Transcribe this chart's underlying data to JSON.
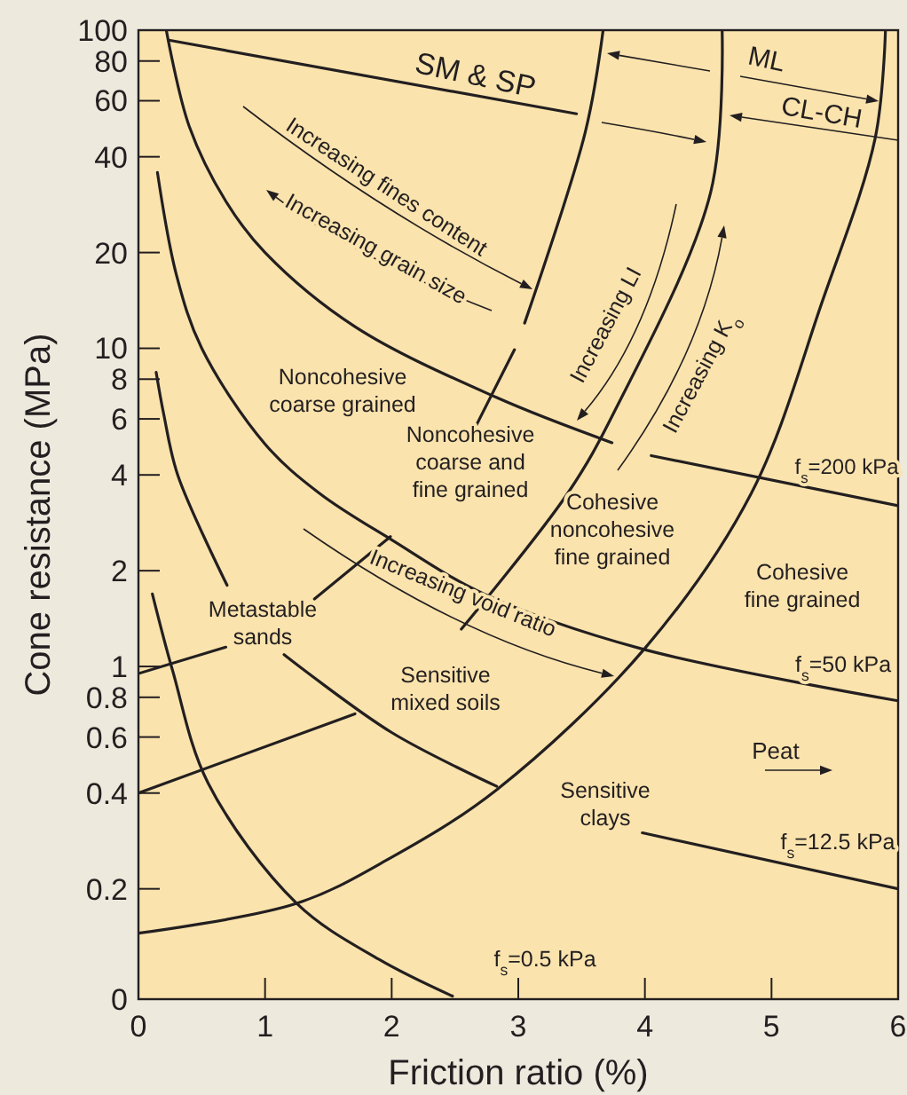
{
  "chart_data": {
    "type": "line",
    "xlabel": "Friction ratio (%)",
    "ylabel": "Cone resistance (MPa)",
    "log": "y",
    "xlim": [
      0,
      6
    ],
    "ylim": [
      0.09,
      100
    ],
    "xticks": [
      0,
      1,
      2,
      3,
      4,
      5,
      6
    ],
    "yticks": [
      {
        "value": 0.09,
        "label": "0"
      },
      0.2,
      0.4,
      0.6,
      0.8,
      1,
      2,
      4,
      6,
      8,
      10,
      20,
      40,
      60,
      80,
      100
    ],
    "series": [
      {
        "color": "#231f20",
        "x": [
          0.22,
          0.4,
          0.69,
          1.0,
          1.71,
          2.83,
          3.74,
          3.9,
          4.05,
          6.0
        ],
        "values": [
          100,
          50,
          29,
          20,
          11.7,
          7.0,
          5.05,
          null,
          4.6,
          3.2
        ]
      },
      {
        "color": "#231f20",
        "x": [
          0.15,
          0.3,
          0.5,
          1.0,
          1.43,
          2.0,
          2.73,
          3.96,
          6.0
        ],
        "values": [
          35.7,
          17,
          10,
          5,
          3.5,
          2.5,
          1.69,
          1.14,
          0.78
        ]
      },
      {
        "color": "#231f20",
        "x": [
          0.14,
          0.2,
          0.31,
          0.7,
          0.9,
          1.15,
          2.0,
          2.83,
          3.4,
          3.98,
          6.0
        ],
        "values": [
          8.4,
          6.2,
          4.0,
          1.8,
          null,
          1.09,
          0.62,
          0.42,
          null,
          0.3,
          0.2
        ]
      },
      {
        "color": "#231f20",
        "x": [
          0.11,
          0.27,
          0.55,
          1.25,
          1.9,
          2.48
        ],
        "values": [
          1.69,
          0.97,
          0.43,
          0.18,
          0.12,
          0.092
        ]
      },
      {
        "color": "#231f20",
        "x": [
          0,
          1.25,
          1.99,
          2.83,
          4.0,
          4.84,
          5.4,
          5.82,
          5.9
        ],
        "values": [
          0.145,
          0.18,
          0.25,
          0.41,
          1.14,
          3.5,
          14,
          46,
          100
        ]
      },
      {
        "color": "#231f20",
        "x": [
          0,
          1.71,
          2.1,
          2.55,
          3.39,
          3.77,
          4.52,
          4.61
        ],
        "values": [
          0.4,
          0.71,
          null,
          1.31,
          3.5,
          6.45,
          31,
          100
        ]
      },
      {
        "color": "#231f20",
        "x": [
          0,
          0.69,
          1.0,
          1.39,
          1.99,
          2.3,
          2.6,
          2.97,
          3.0,
          3.05,
          3.53,
          3.67
        ],
        "values": [
          0.95,
          1.15,
          null,
          1.63,
          2.56,
          null,
          5.06,
          9.9,
          null,
          12,
          48,
          100
        ]
      },
      {
        "color": "#231f20",
        "x": [
          0.24,
          3.46
        ],
        "values": [
          93,
          54.6
        ]
      }
    ],
    "annotations": [
      "SM & SP",
      "ML",
      "CL-CH",
      "Increasing fines content",
      "Increasing grain size",
      "Increasing LI",
      "Increasing K$_{o}$",
      "Noncohesive\ncoarse grained",
      "Noncohesive\ncoarse and\nfine grained",
      "Cohesive\nnoncohesive\nfine grained",
      "Cohesive\nfine grained",
      "Increasing void ratio",
      "Metastable\nsands",
      "Sensitive\nmixed soils",
      "Peat",
      "Sensitive\nclays",
      "f$_{s}$=200 kPa",
      "f$_{s}$=50 kPa",
      "f$_{s}$=12.5 kPa",
      "f$_{s}$=0.5 kPa"
    ]
  }
}
